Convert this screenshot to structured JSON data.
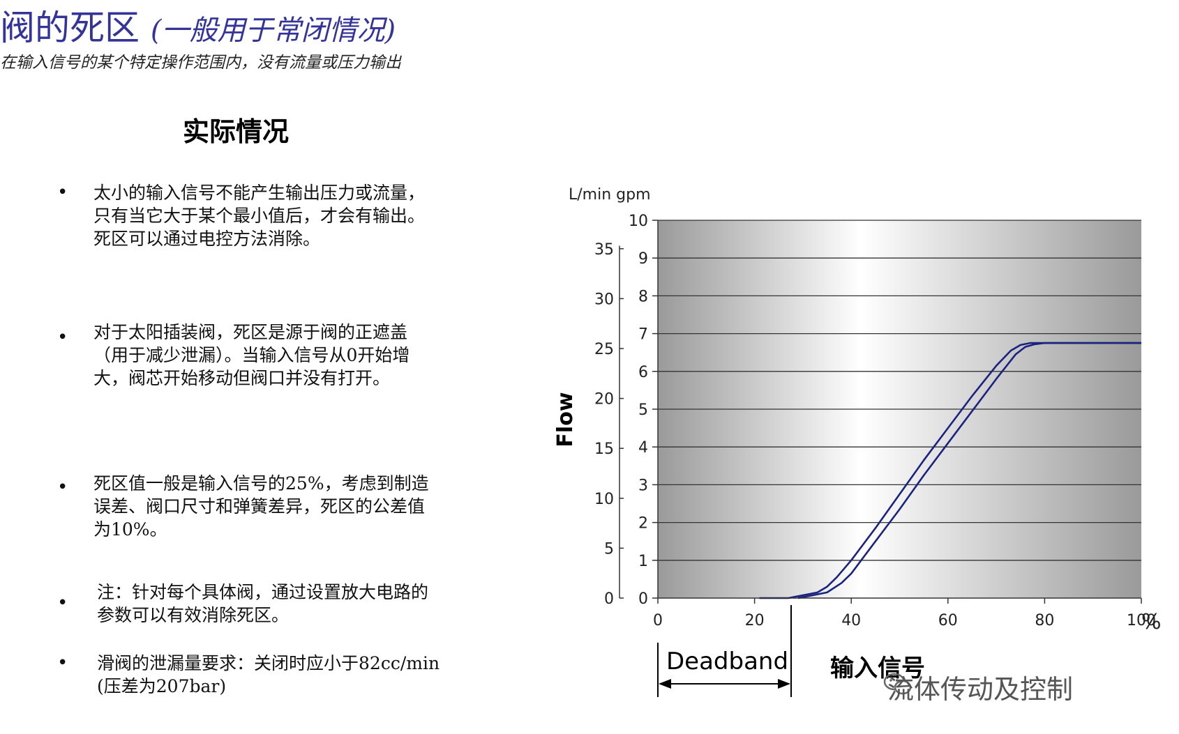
{
  "page": {
    "title": "阀的死区",
    "title_paren": "(一般用于常闭情况)",
    "subtitle": "在输入信号的某个特定操作范围内，没有流量或压力输出",
    "section_title": "实际情况",
    "bullets": [
      {
        "lines": [
          "太小的输入信号不能产生输出压力或流量，",
          "只有当它大于某个最小值后，才会有输出。",
          "死区可以通过电控方法消除。"
        ]
      },
      {
        "lines": [
          "对于太阳插装阀，死区是源于阀的正遮盖",
          "（用于减少泄漏）。当输入信号从0开始增",
          "大，阀芯开始移动但阀口并没有打开。"
        ]
      },
      {
        "lines": [
          "死区值一般是输入信号的25%，考虑到制造",
          "误差、阀口尺寸和弹簧差异，死区的公差值",
          "为10%。"
        ]
      },
      {
        "lines": [
          "注：针对每个具体阀，通过设置放大电路的",
          "参数可以有效消除死区。"
        ]
      },
      {
        "lines": [
          "滑阀的泄漏量要求：关闭时应小于82cc/min",
          "(压差为207bar)"
        ]
      }
    ],
    "bullet_symbol": "•",
    "watermark": "流体传动及控制",
    "watermark_icon": "wechat-icon"
  },
  "chart_data": {
    "type": "line",
    "unit_header": "L/min  gpm",
    "ylabel": "Flow",
    "xlabel": "输入信号",
    "x_unit": "%",
    "deadband_label": "Deadband",
    "xlim": [
      0,
      100
    ],
    "xticks": [
      "0",
      "20",
      "40",
      "60",
      "80",
      "100"
    ],
    "ylim_gpm": [
      0,
      10
    ],
    "yticks_gpm": [
      "0",
      "1",
      "2",
      "3",
      "4",
      "5",
      "6",
      "7",
      "8",
      "9",
      "10"
    ],
    "ylim_lpm": [
      0,
      37.85
    ],
    "yticks_lpm": [
      "0",
      "5",
      "10",
      "15",
      "20",
      "25",
      "30",
      "35"
    ],
    "deadband_end_x": 27.5,
    "series": [
      {
        "x": [
          21,
          27,
          29,
          31,
          33,
          35,
          37,
          40,
          45,
          50,
          55,
          60,
          65,
          70,
          73,
          75,
          77,
          80,
          85,
          90,
          95,
          100
        ],
        "y": [
          0,
          0,
          0.05,
          0.1,
          0.15,
          0.3,
          0.55,
          1.0,
          1.85,
          2.75,
          3.65,
          4.5,
          5.35,
          6.15,
          6.55,
          6.7,
          6.75,
          6.75,
          6.75,
          6.75,
          6.75,
          6.75
        ]
      },
      {
        "x": [
          29,
          31,
          33,
          35,
          38,
          40,
          45,
          50,
          55,
          60,
          65,
          70,
          74,
          76,
          78,
          80,
          85,
          90,
          95,
          100
        ],
        "y": [
          0,
          0.05,
          0.1,
          0.15,
          0.4,
          0.65,
          1.5,
          2.35,
          3.25,
          4.1,
          4.95,
          5.8,
          6.45,
          6.65,
          6.72,
          6.75,
          6.75,
          6.75,
          6.75,
          6.75
        ]
      }
    ],
    "line_color": "#1a237e",
    "plot_bg_edge": "#9a9a9a",
    "plot_bg_center": "#ffffff"
  }
}
